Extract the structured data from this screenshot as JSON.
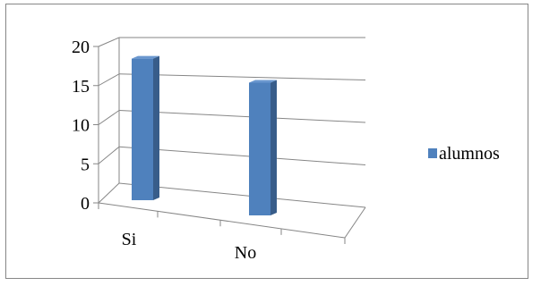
{
  "chart_data": {
    "type": "bar",
    "categories": [
      "Si",
      "No"
    ],
    "series": [
      {
        "name": "alumnos",
        "values": [
          16,
          15
        ]
      }
    ],
    "ylim": [
      0,
      20
    ],
    "yticks": [
      0,
      5,
      10,
      15,
      20
    ],
    "grid": true,
    "legend": "right",
    "colors": {
      "bar": "#4F81BD",
      "bar_side": "#385D8A",
      "bar_top": "#6A97CF",
      "axis": "#868686",
      "grid": "#868686"
    }
  }
}
